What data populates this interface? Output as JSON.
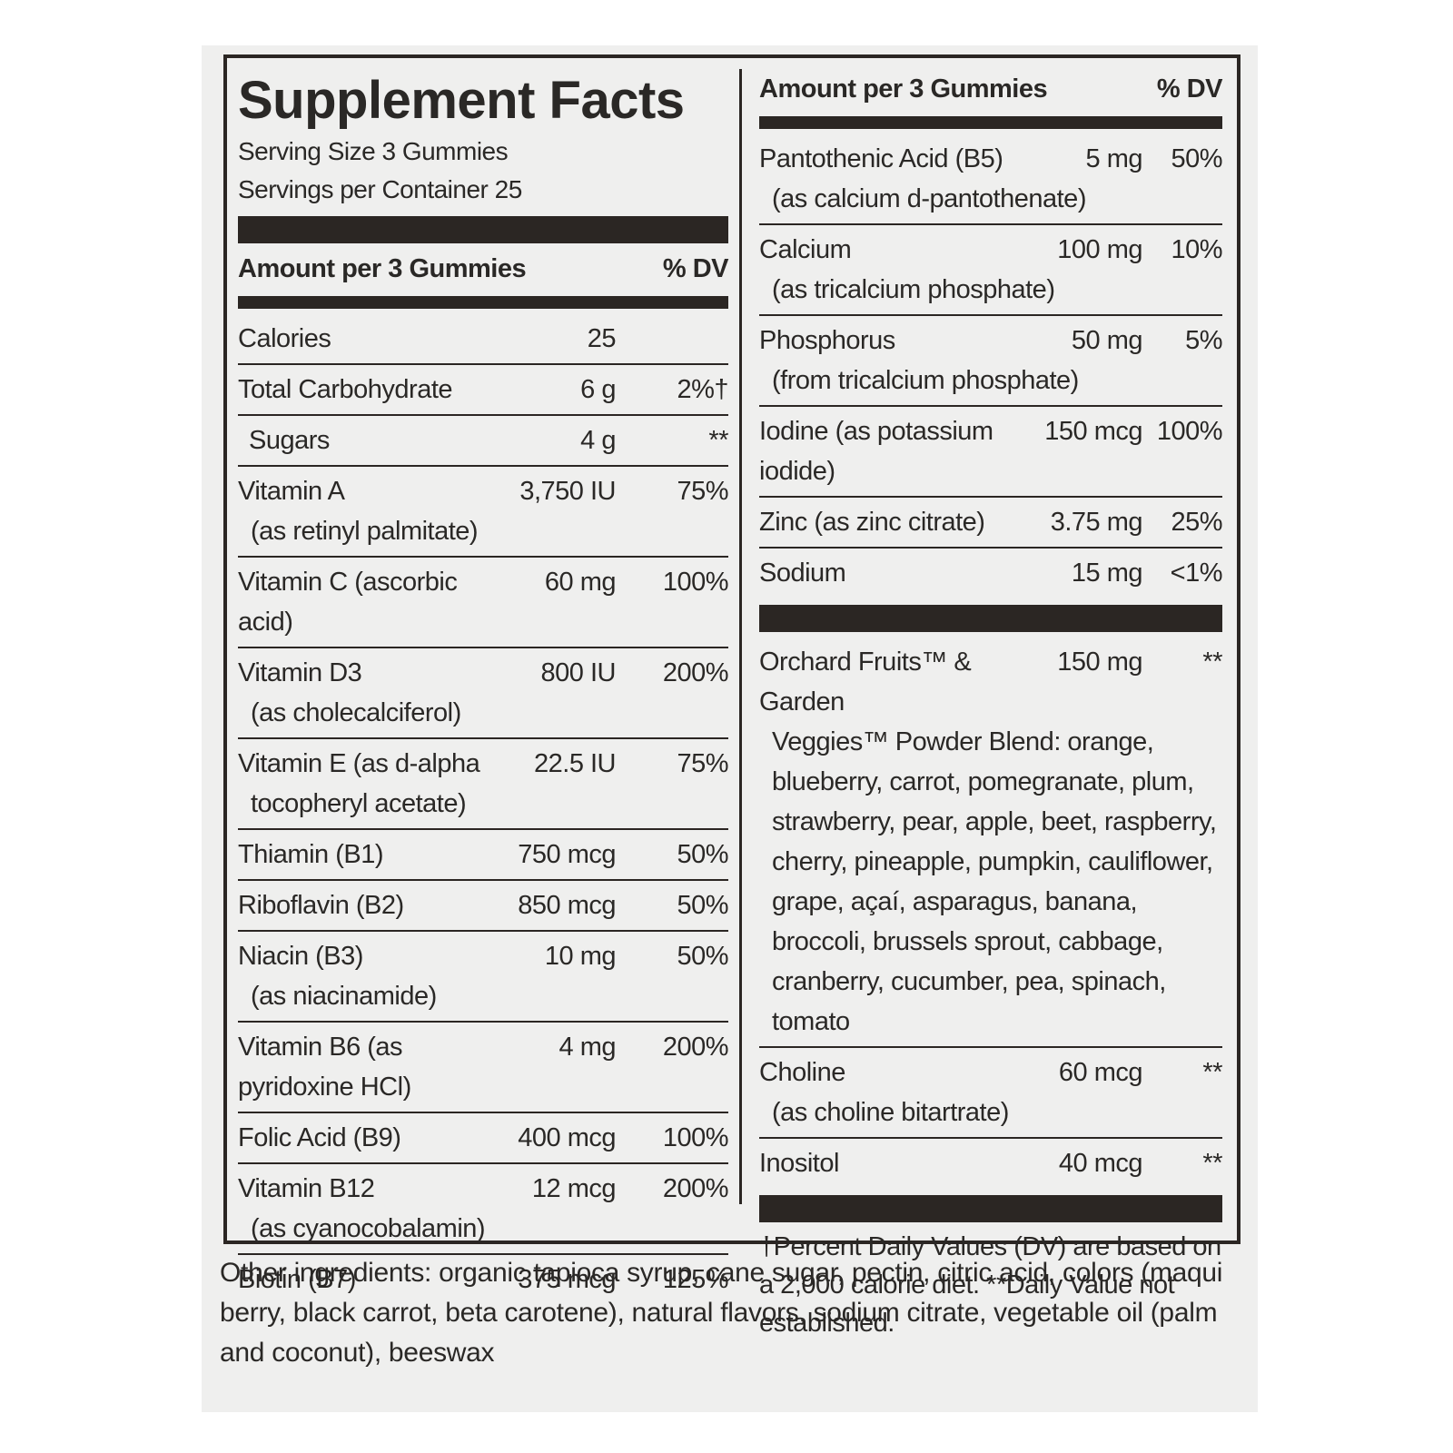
{
  "label": {
    "title": "Supplement Facts",
    "serving_size": "Serving Size 3 Gummies",
    "servings_per_container": "Servings per Container 25",
    "left": {
      "header": {
        "amount": "Amount per 3 Gummies",
        "dv": "% DV"
      },
      "rows": [
        {
          "name": "Calories",
          "amount": "25"
        },
        {
          "name": "Total Carbohydrate",
          "amount": "6 g",
          "dv": "2%†",
          "subrows": [
            {
              "name": "Sugars",
              "amount": "4 g",
              "dv": "**"
            }
          ]
        },
        {
          "name": "Vitamin A",
          "detail": "(as retinyl palmitate)",
          "amount": "3,750 IU",
          "dv": "75%"
        },
        {
          "name": "Vitamin C (ascorbic acid)",
          "amount": "60 mg",
          "dv": "100%"
        },
        {
          "name": "Vitamin D3",
          "detail": "(as cholecalciferol)",
          "amount": "800 IU",
          "dv": "200%"
        },
        {
          "name": "Vitamin E (as d-alpha",
          "detail": "tocopheryl acetate)",
          "amount": "22.5 IU",
          "dv": "75%"
        },
        {
          "name": "Thiamin (B1)",
          "amount": "750 mcg",
          "dv": "50%"
        },
        {
          "name": "Riboflavin (B2)",
          "amount": "850 mcg",
          "dv": "50%"
        },
        {
          "name": "Niacin (B3)",
          "detail": "(as niacinamide)",
          "amount": "10 mg",
          "dv": "50%"
        },
        {
          "name": "Vitamin B6 (as pyridoxine HCl)",
          "amount": "4 mg",
          "dv": "200%"
        },
        {
          "name": "Folic Acid (B9)",
          "amount": "400 mcg",
          "dv": "100%"
        },
        {
          "name": "Vitamin B12",
          "detail": "(as cyanocobalamin)",
          "amount": "12 mcg",
          "dv": "200%"
        },
        {
          "name": "Biotin (B7)",
          "amount": "375 mcg",
          "dv": "125%"
        }
      ]
    },
    "right": {
      "header": {
        "amount": "Amount per 3 Gummies",
        "dv": "% DV"
      },
      "rows": [
        {
          "name": "Pantothenic Acid (B5)",
          "detail": "(as calcium d-pantothenate)",
          "amount": "5 mg",
          "dv": "50%"
        },
        {
          "name": "Calcium",
          "detail": "(as tricalcium phosphate)",
          "amount": "100 mg",
          "dv": "10%"
        },
        {
          "name": "Phosphorus",
          "detail": "(from tricalcium phosphate)",
          "amount": "50 mg",
          "dv": "5%"
        },
        {
          "name": "Iodine (as potassium iodide)",
          "amount": "150 mcg",
          "dv": "100%"
        },
        {
          "name": "Zinc (as zinc citrate)",
          "amount": "3.75 mg",
          "dv": "25%"
        },
        {
          "name": "Sodium",
          "amount": "15 mg",
          "dv": "<1%"
        }
      ],
      "blend_rows": [
        {
          "name": "Orchard Fruits™ & Garden",
          "detail": "Veggies™ Powder Blend: orange, blueberry, carrot, pomegranate, plum, strawberry, pear, apple, beet, raspberry, cherry, pineapple, pumpkin, cauliflower, grape, açaí, asparagus, banana, broccoli, brussels sprout, cabbage, cranberry, cucumber, pea, spinach, tomato",
          "amount": "150 mg",
          "dv": "**"
        },
        {
          "name": "Choline",
          "detail": "(as choline bitartrate)",
          "amount": "60 mcg",
          "dv": "**"
        },
        {
          "name": "Inositol",
          "amount": "40 mcg",
          "dv": "**"
        }
      ],
      "footnote": "†Percent Daily Values (DV) are based on a 2,000 calorie diet. **Daily Value not established."
    },
    "other_ingredients": "Other ingredients: organic tapioca syrup, cane sugar, pectin, citric acid, colors (maqui berry, black carrot, beta carotene), natural flavors, sodium citrate, vegetable oil (palm and coconut), beeswax"
  }
}
